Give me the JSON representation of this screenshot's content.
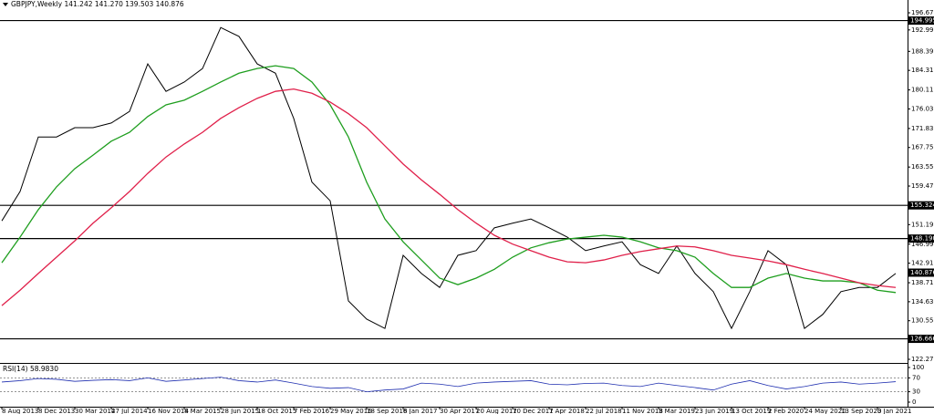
{
  "chart_data": [
    {
      "type": "line",
      "title": "GBPJPY,Weekly  141.242 141.270 139.503 140.876",
      "categories": [
        "8 Aug 2013",
        null,
        "8 Dec 2013",
        null,
        "30 Mar 2014",
        null,
        "27 Jul 2014",
        null,
        "16 Nov 2014",
        null,
        "8 Mar 2015",
        null,
        "28 Jun 2015",
        null,
        "18 Oct 2015",
        null,
        "7 Feb 2016",
        null,
        "29 May 2016",
        null,
        "18 Sep 2016",
        null,
        "8 Jan 2017",
        null,
        "30 Apr 2017",
        null,
        "20 Aug 2017",
        null,
        "10 Dec 2017",
        null,
        "1 Apr 2018",
        null,
        "22 Jul 2018",
        null,
        "11 Nov 2018",
        null,
        "3 Mar 2019",
        null,
        "23 Jun 2019",
        null,
        "13 Oct 2019",
        null,
        "2 Feb 2020",
        null,
        "24 May 2020",
        null,
        "13 Sep 2020",
        null,
        "3 Jan 2021",
        null
      ],
      "series": [
        {
          "color": "#000000",
          "values": [
            152.0,
            158.3,
            170.0,
            170.0,
            172.0,
            172.0,
            173.0,
            175.5,
            185.7,
            179.8,
            181.8,
            184.7,
            193.5,
            191.6,
            185.7,
            183.7,
            174.0,
            160.3,
            156.3,
            134.8,
            130.9,
            128.9,
            144.6,
            140.7,
            137.7,
            144.6,
            145.6,
            150.5,
            151.5,
            152.4,
            150.5,
            148.5,
            145.6,
            146.6,
            147.5,
            142.6,
            140.7,
            146.6,
            140.7,
            136.8,
            128.9,
            136.8,
            145.6,
            142.6,
            128.9,
            131.9,
            136.8,
            137.7,
            137.7,
            140.7
          ]
        },
        {
          "color": "#1e9e1e",
          "values": [
            143.0,
            148.5,
            154.4,
            159.3,
            163.2,
            166.1,
            169.1,
            171.0,
            174.4,
            176.9,
            177.9,
            179.8,
            181.8,
            183.7,
            184.7,
            185.3,
            184.7,
            181.8,
            176.9,
            170.0,
            160.3,
            152.4,
            147.5,
            143.6,
            139.7,
            138.3,
            139.7,
            141.6,
            144.2,
            146.2,
            147.3,
            148.1,
            148.5,
            148.9,
            148.5,
            147.5,
            146.2,
            145.6,
            144.2,
            140.7,
            137.7,
            137.7,
            139.7,
            140.7,
            139.7,
            139.1,
            139.1,
            138.7,
            137.1,
            136.6
          ]
        },
        {
          "color": "#e0204a",
          "values": [
            133.8,
            137.1,
            140.7,
            144.2,
            147.7,
            151.5,
            154.8,
            158.3,
            162.2,
            165.7,
            168.5,
            171.0,
            174.0,
            176.3,
            178.3,
            179.8,
            180.3,
            179.4,
            177.5,
            175.0,
            172.0,
            168.1,
            164.2,
            160.8,
            157.7,
            154.4,
            151.5,
            148.9,
            147.0,
            145.6,
            144.2,
            143.2,
            143.0,
            143.6,
            144.6,
            145.4,
            146.0,
            146.6,
            146.4,
            145.6,
            144.6,
            144.0,
            143.4,
            142.6,
            141.6,
            140.7,
            139.7,
            138.7,
            138.1,
            137.7
          ]
        }
      ],
      "ylim": [
        121.49,
        197.85
      ],
      "yticks": [
        {
          "value": 196.67,
          "label": "196.670"
        },
        {
          "value": 192.99,
          "label": "192.990"
        },
        {
          "value": 188.39,
          "label": "188.390"
        },
        {
          "value": 184.31,
          "label": "184.310"
        },
        {
          "value": 180.11,
          "label": "180.110"
        },
        {
          "value": 176.03,
          "label": "176.030"
        },
        {
          "value": 171.83,
          "label": "171.830"
        },
        {
          "value": 167.75,
          "label": "167.750"
        },
        {
          "value": 163.55,
          "label": "163.550"
        },
        {
          "value": 159.47,
          "label": "159.470"
        },
        {
          "value": 151.19,
          "label": "151.190"
        },
        {
          "value": 146.99,
          "label": "146.990"
        },
        {
          "value": 142.91,
          "label": "142.910"
        },
        {
          "value": 138.71,
          "label": "138.710"
        },
        {
          "value": 134.63,
          "label": "134.630"
        },
        {
          "value": 130.55,
          "label": "130.550"
        },
        {
          "value": 122.27,
          "label": "122.270"
        }
      ],
      "levels": [
        194.995,
        155.324,
        {
          "value": 148.19,
          "label": "148.190"
        },
        126.666
      ],
      "current_price": 140.876
    },
    {
      "type": "line",
      "title": "RSI(14) 58.9830",
      "color": "#1f2fb0",
      "values": [
        58,
        62,
        68,
        66,
        60,
        63,
        65,
        62,
        70,
        60,
        64,
        68,
        72,
        62,
        58,
        64,
        55,
        45,
        40,
        42,
        30,
        35,
        38,
        55,
        52,
        45,
        55,
        58,
        60,
        62,
        52,
        50,
        54,
        55,
        48,
        45,
        55,
        48,
        42,
        35,
        52,
        62,
        48,
        38,
        45,
        55,
        58,
        52,
        55,
        59
      ],
      "ylim": [
        0,
        100
      ],
      "yticks": [
        100,
        70,
        30,
        0
      ]
    }
  ]
}
